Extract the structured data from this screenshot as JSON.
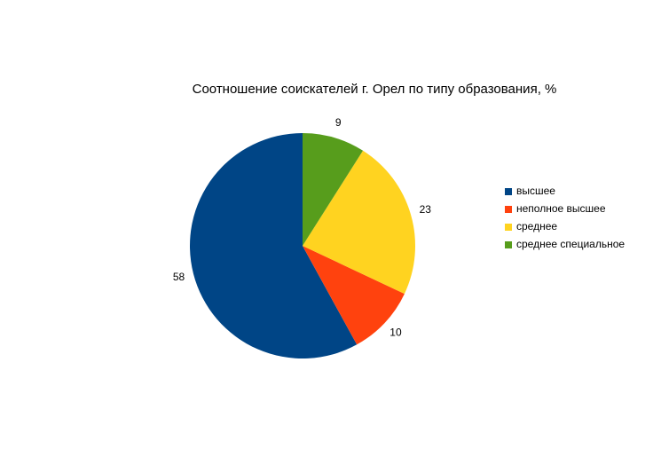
{
  "chart_data": {
    "type": "pie",
    "title": "Соотношение соискателей г. Орел по типу образования, %",
    "categories": [
      "высшее",
      "неполное высшее",
      "среднее",
      "среднее специальное"
    ],
    "values": [
      58,
      10,
      23,
      9
    ],
    "colors": [
      "#004586",
      "#ff420e",
      "#ffd320",
      "#579d1c"
    ],
    "legend": "right"
  }
}
